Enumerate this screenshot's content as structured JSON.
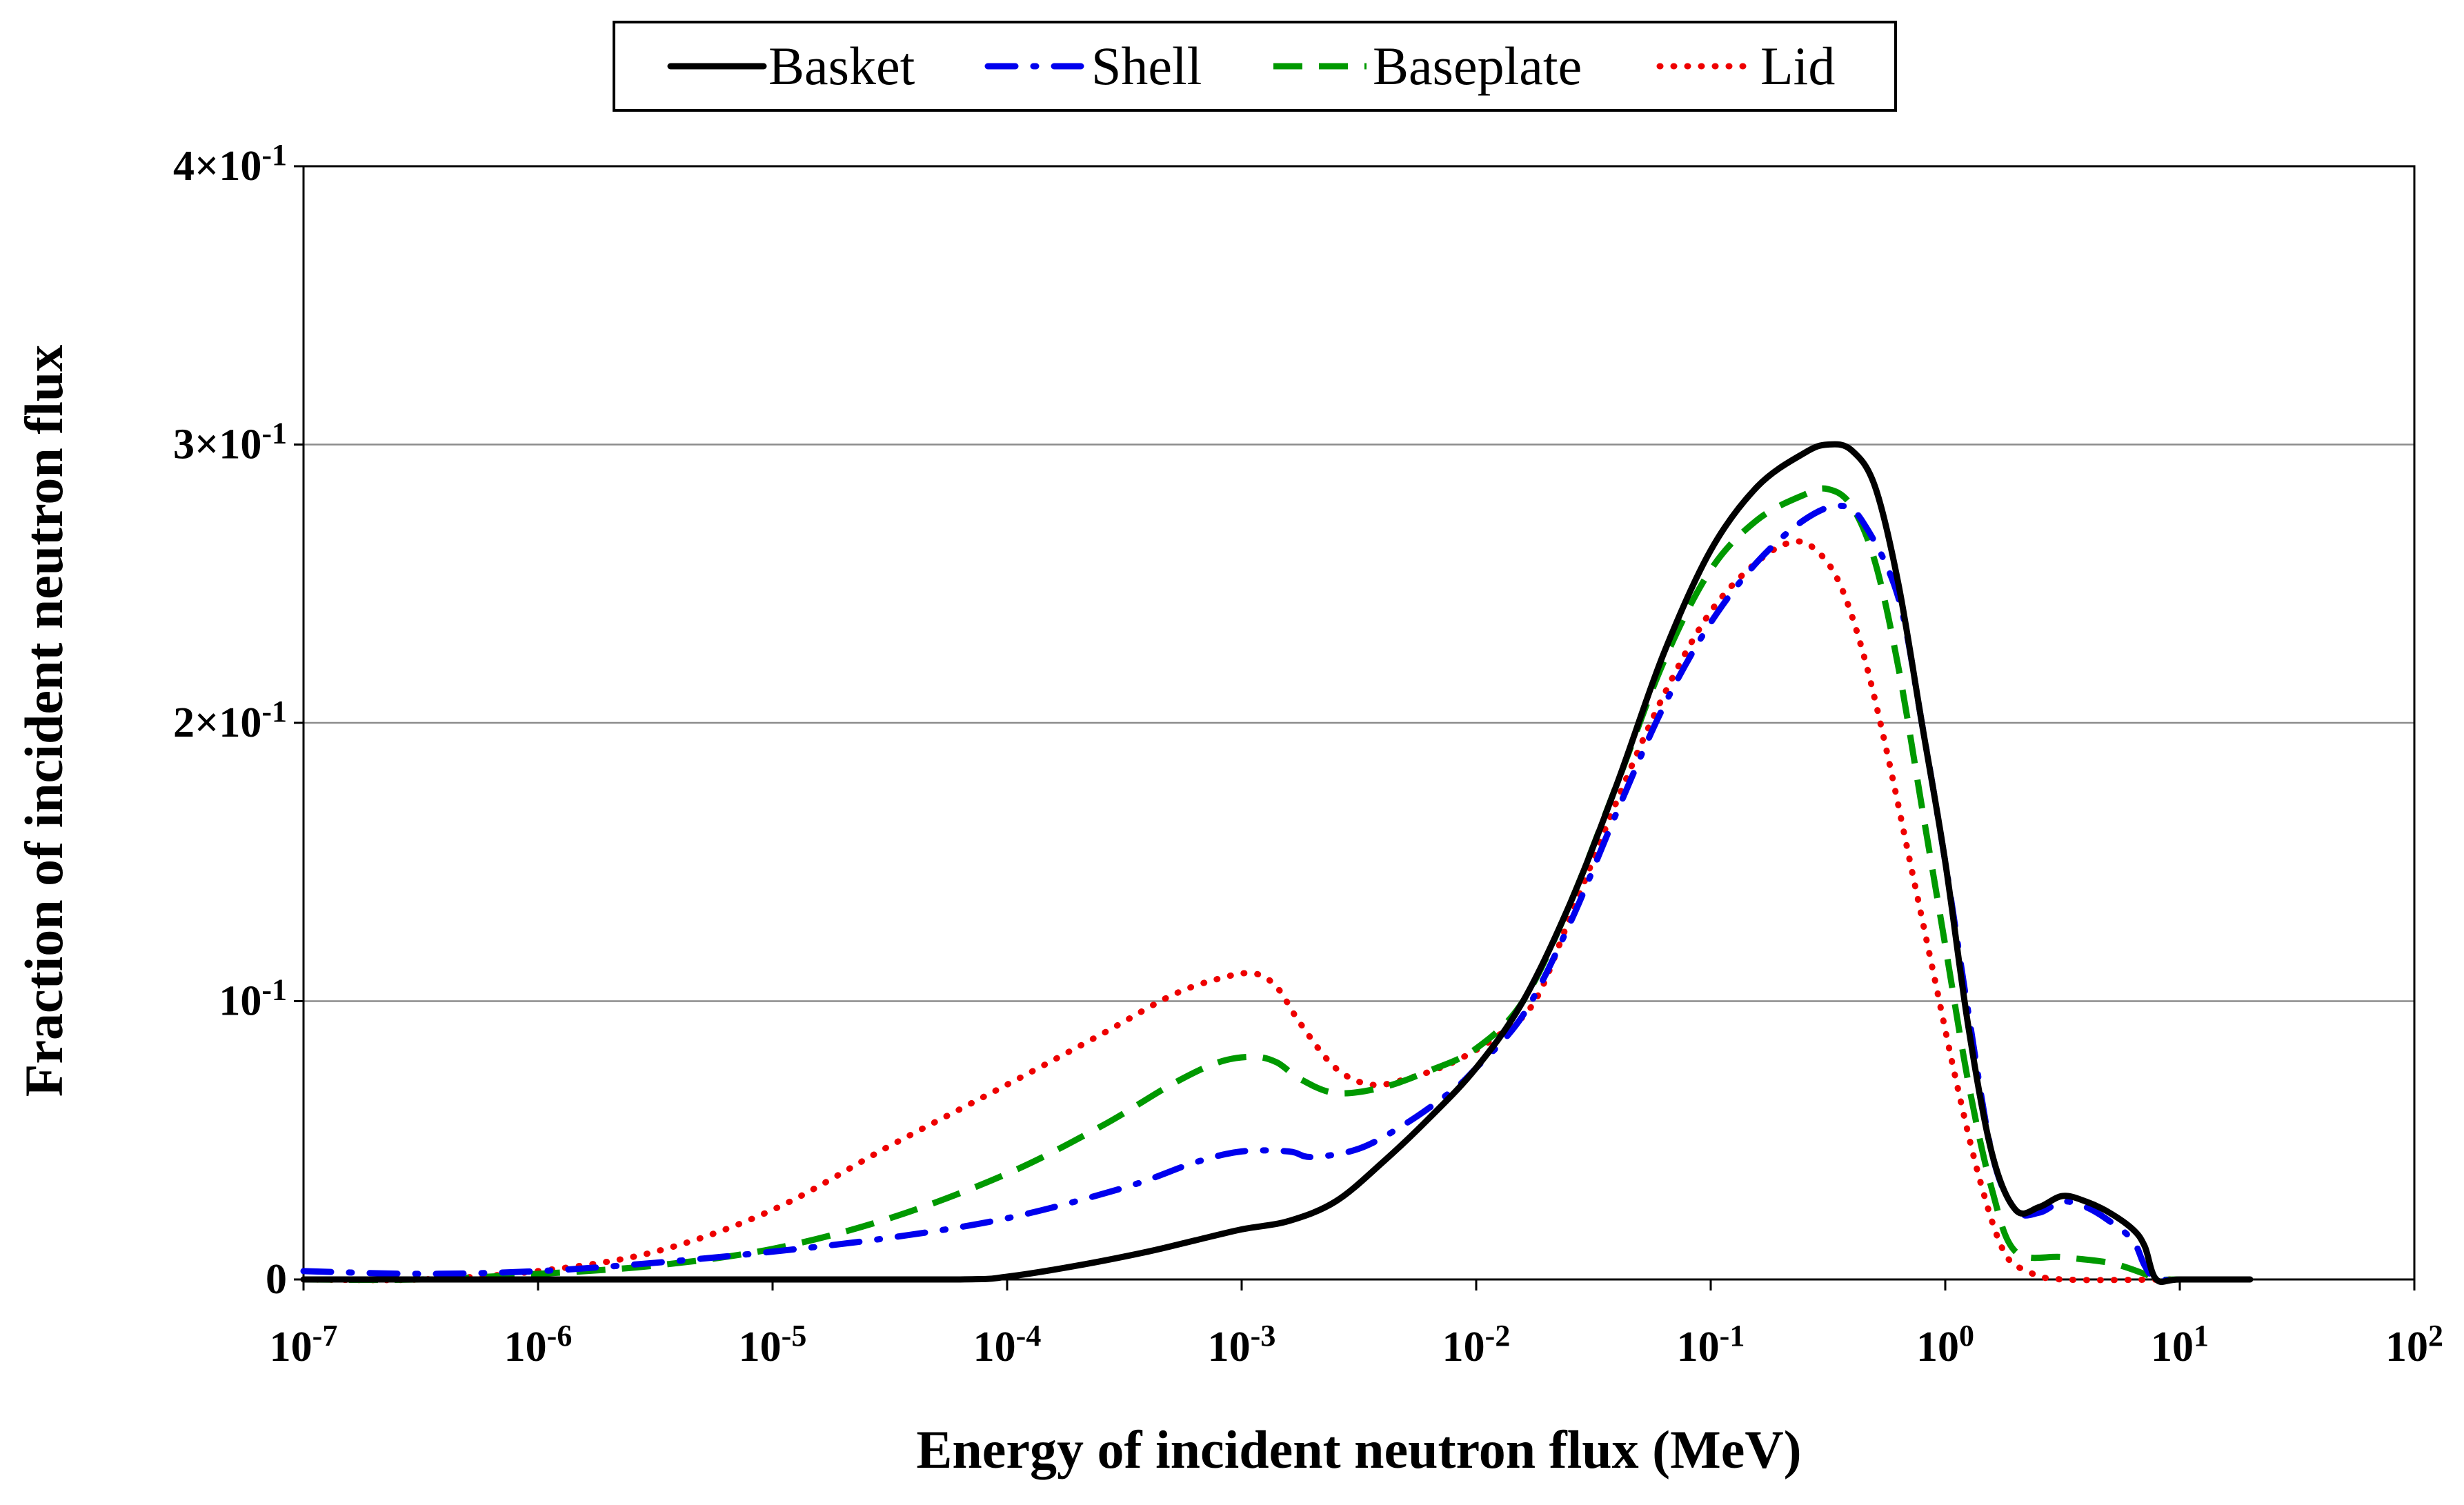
{
  "chart_data": {
    "type": "line",
    "title": "",
    "xlabel": "Energy of incident neutron flux (MeV)",
    "ylabel": "Fraction of incident neutron flux",
    "xscale": "log",
    "xlim_exponents": [
      -7,
      2
    ],
    "ylim": [
      0,
      0.4
    ],
    "grid": "horizontal",
    "legend_position": "top-center",
    "x_ticks": [
      {
        "base": "10",
        "exp": "-7"
      },
      {
        "base": "10",
        "exp": "-6"
      },
      {
        "base": "10",
        "exp": "-5"
      },
      {
        "base": "10",
        "exp": "-4"
      },
      {
        "base": "10",
        "exp": "-3"
      },
      {
        "base": "10",
        "exp": "-2"
      },
      {
        "base": "10",
        "exp": "-1"
      },
      {
        "base": "10",
        "exp": "0"
      },
      {
        "base": "10",
        "exp": "1"
      },
      {
        "base": "10",
        "exp": "2"
      }
    ],
    "y_ticks": [
      {
        "value": 0,
        "base": "0",
        "exp": ""
      },
      {
        "value": 0.1,
        "base": "10",
        "exp": "-1"
      },
      {
        "value": 0.2,
        "base": "2×10",
        "exp": "-1"
      },
      {
        "value": 0.3,
        "base": "3×10",
        "exp": "-1"
      },
      {
        "value": 0.4,
        "base": "4×10",
        "exp": "-1"
      }
    ],
    "series": [
      {
        "name": "Basket",
        "color": "#000000",
        "style": "solid",
        "points": [
          [
            -7,
            0
          ],
          [
            -6,
            0
          ],
          [
            -5,
            0
          ],
          [
            -4.2,
            0
          ],
          [
            -4,
            0.001
          ],
          [
            -3.7,
            0.005
          ],
          [
            -3.4,
            0.01
          ],
          [
            -3.2,
            0.014
          ],
          [
            -3,
            0.018
          ],
          [
            -2.8,
            0.021
          ],
          [
            -2.6,
            0.028
          ],
          [
            -2.4,
            0.042
          ],
          [
            -2.2,
            0.058
          ],
          [
            -2,
            0.076
          ],
          [
            -1.8,
            0.1
          ],
          [
            -1.6,
            0.135
          ],
          [
            -1.4,
            0.178
          ],
          [
            -1.2,
            0.225
          ],
          [
            -1,
            0.262
          ],
          [
            -0.8,
            0.285
          ],
          [
            -0.6,
            0.297
          ],
          [
            -0.5,
            0.3
          ],
          [
            -0.4,
            0.298
          ],
          [
            -0.3,
            0.285
          ],
          [
            -0.2,
            0.25
          ],
          [
            -0.1,
            0.2
          ],
          [
            0,
            0.15
          ],
          [
            0.1,
            0.09
          ],
          [
            0.2,
            0.045
          ],
          [
            0.3,
            0.025
          ],
          [
            0.4,
            0.026
          ],
          [
            0.5,
            0.03
          ],
          [
            0.6,
            0.028
          ],
          [
            0.7,
            0.024
          ],
          [
            0.8,
            0.018
          ],
          [
            0.85,
            0.012
          ],
          [
            0.9,
            0
          ],
          [
            1,
            0
          ],
          [
            1.3,
            0
          ]
        ]
      },
      {
        "name": "Shell",
        "color": "#0000ee",
        "style": "dashdot",
        "points": [
          [
            -7,
            0.003
          ],
          [
            -6.5,
            0.002
          ],
          [
            -6,
            0.003
          ],
          [
            -5.5,
            0.006
          ],
          [
            -5,
            0.01
          ],
          [
            -4.5,
            0.015
          ],
          [
            -4,
            0.022
          ],
          [
            -3.5,
            0.033
          ],
          [
            -3.2,
            0.042
          ],
          [
            -3,
            0.046
          ],
          [
            -2.8,
            0.046
          ],
          [
            -2.7,
            0.044
          ],
          [
            -2.5,
            0.047
          ],
          [
            -2.3,
            0.056
          ],
          [
            -2.1,
            0.068
          ],
          [
            -2,
            0.076
          ],
          [
            -1.8,
            0.095
          ],
          [
            -1.6,
            0.128
          ],
          [
            -1.4,
            0.168
          ],
          [
            -1.2,
            0.206
          ],
          [
            -1,
            0.236
          ],
          [
            -0.8,
            0.258
          ],
          [
            -0.6,
            0.273
          ],
          [
            -0.45,
            0.278
          ],
          [
            -0.35,
            0.272
          ],
          [
            -0.2,
            0.245
          ],
          [
            -0.1,
            0.2
          ],
          [
            0,
            0.15
          ],
          [
            0.1,
            0.095
          ],
          [
            0.2,
            0.045
          ],
          [
            0.3,
            0.025
          ],
          [
            0.4,
            0.024
          ],
          [
            0.5,
            0.028
          ],
          [
            0.6,
            0.026
          ],
          [
            0.7,
            0.021
          ],
          [
            0.8,
            0.014
          ],
          [
            0.85,
            0.005
          ],
          [
            0.9,
            0
          ],
          [
            1,
            0
          ],
          [
            1.3,
            0
          ]
        ]
      },
      {
        "name": "Baseplate",
        "color": "#009900",
        "style": "dashed",
        "points": [
          [
            -7,
            0
          ],
          [
            -6.5,
            0
          ],
          [
            -6,
            0.002
          ],
          [
            -5.5,
            0.005
          ],
          [
            -5,
            0.011
          ],
          [
            -4.5,
            0.022
          ],
          [
            -4,
            0.038
          ],
          [
            -3.6,
            0.055
          ],
          [
            -3.3,
            0.07
          ],
          [
            -3.1,
            0.078
          ],
          [
            -2.95,
            0.08
          ],
          [
            -2.85,
            0.078
          ],
          [
            -2.75,
            0.072
          ],
          [
            -2.6,
            0.067
          ],
          [
            -2.4,
            0.069
          ],
          [
            -2.2,
            0.075
          ],
          [
            -2,
            0.083
          ],
          [
            -1.8,
            0.1
          ],
          [
            -1.6,
            0.135
          ],
          [
            -1.4,
            0.178
          ],
          [
            -1.2,
            0.222
          ],
          [
            -1,
            0.255
          ],
          [
            -0.8,
            0.273
          ],
          [
            -0.6,
            0.282
          ],
          [
            -0.5,
            0.284
          ],
          [
            -0.4,
            0.278
          ],
          [
            -0.3,
            0.258
          ],
          [
            -0.2,
            0.22
          ],
          [
            -0.1,
            0.17
          ],
          [
            0,
            0.12
          ],
          [
            0.1,
            0.07
          ],
          [
            0.2,
            0.032
          ],
          [
            0.3,
            0.01
          ],
          [
            0.5,
            0.008
          ],
          [
            0.7,
            0.006
          ],
          [
            0.85,
            0.002
          ],
          [
            0.9,
            0
          ],
          [
            1,
            0
          ],
          [
            1.3,
            0
          ]
        ]
      },
      {
        "name": "Lid",
        "color": "#ee0000",
        "style": "dotted",
        "points": [
          [
            -7,
            0
          ],
          [
            -6.5,
            0
          ],
          [
            -6,
            0.003
          ],
          [
            -5.5,
            0.01
          ],
          [
            -5,
            0.025
          ],
          [
            -4.5,
            0.048
          ],
          [
            -4,
            0.07
          ],
          [
            -3.6,
            0.088
          ],
          [
            -3.3,
            0.102
          ],
          [
            -3.1,
            0.108
          ],
          [
            -2.95,
            0.11
          ],
          [
            -2.85,
            0.105
          ],
          [
            -2.75,
            0.092
          ],
          [
            -2.6,
            0.076
          ],
          [
            -2.45,
            0.07
          ],
          [
            -2.3,
            0.072
          ],
          [
            -2.1,
            0.078
          ],
          [
            -1.9,
            0.088
          ],
          [
            -1.75,
            0.1
          ],
          [
            -1.6,
            0.13
          ],
          [
            -1.4,
            0.172
          ],
          [
            -1.2,
            0.21
          ],
          [
            -1,
            0.24
          ],
          [
            -0.8,
            0.258
          ],
          [
            -0.65,
            0.265
          ],
          [
            -0.55,
            0.262
          ],
          [
            -0.45,
            0.25
          ],
          [
            -0.35,
            0.225
          ],
          [
            -0.25,
            0.19
          ],
          [
            -0.15,
            0.15
          ],
          [
            -0.05,
            0.11
          ],
          [
            0.05,
            0.07
          ],
          [
            0.15,
            0.035
          ],
          [
            0.25,
            0.01
          ],
          [
            0.35,
            0.003
          ],
          [
            0.5,
            0
          ],
          [
            1,
            0
          ],
          [
            1.3,
            0
          ]
        ]
      }
    ]
  }
}
